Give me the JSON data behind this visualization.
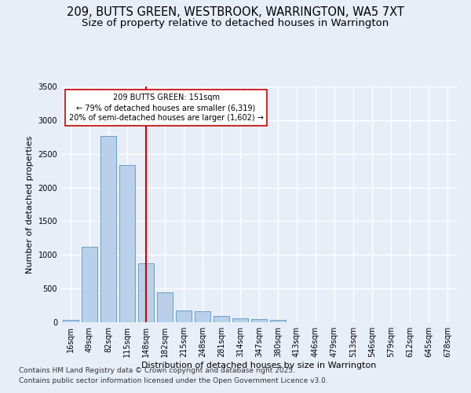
{
  "title_line1": "209, BUTTS GREEN, WESTBROOK, WARRINGTON, WA5 7XT",
  "title_line2": "Size of property relative to detached houses in Warrington",
  "xlabel": "Distribution of detached houses by size in Warrington",
  "ylabel": "Number of detached properties",
  "categories": [
    "16sqm",
    "49sqm",
    "82sqm",
    "115sqm",
    "148sqm",
    "182sqm",
    "215sqm",
    "248sqm",
    "281sqm",
    "314sqm",
    "347sqm",
    "380sqm",
    "413sqm",
    "446sqm",
    "479sqm",
    "513sqm",
    "546sqm",
    "579sqm",
    "612sqm",
    "645sqm",
    "678sqm"
  ],
  "values": [
    40,
    1120,
    2760,
    2330,
    880,
    440,
    170,
    160,
    90,
    60,
    45,
    30,
    0,
    0,
    0,
    0,
    0,
    0,
    0,
    0,
    0
  ],
  "bar_color": "#b8d0ea",
  "bar_edge_color": "#6b9ec8",
  "vline_x": 4,
  "vline_color": "#cc0000",
  "annotation_text": "209 BUTTS GREEN: 151sqm\n← 79% of detached houses are smaller (6,319)\n20% of semi-detached houses are larger (1,602) →",
  "annotation_box_color": "#ffffff",
  "annotation_box_edge": "#cc0000",
  "ylim": [
    0,
    3500
  ],
  "yticks": [
    0,
    500,
    1000,
    1500,
    2000,
    2500,
    3000,
    3500
  ],
  "bg_color": "#e8eef8",
  "plot_bg_color": "#e8eef8",
  "footer_line1": "Contains HM Land Registry data © Crown copyright and database right 2025.",
  "footer_line2": "Contains public sector information licensed under the Open Government Licence v3.0.",
  "title_fontsize": 10.5,
  "subtitle_fontsize": 9.5,
  "label_fontsize": 8,
  "tick_fontsize": 7,
  "footer_fontsize": 6.5,
  "annot_fontsize": 7
}
